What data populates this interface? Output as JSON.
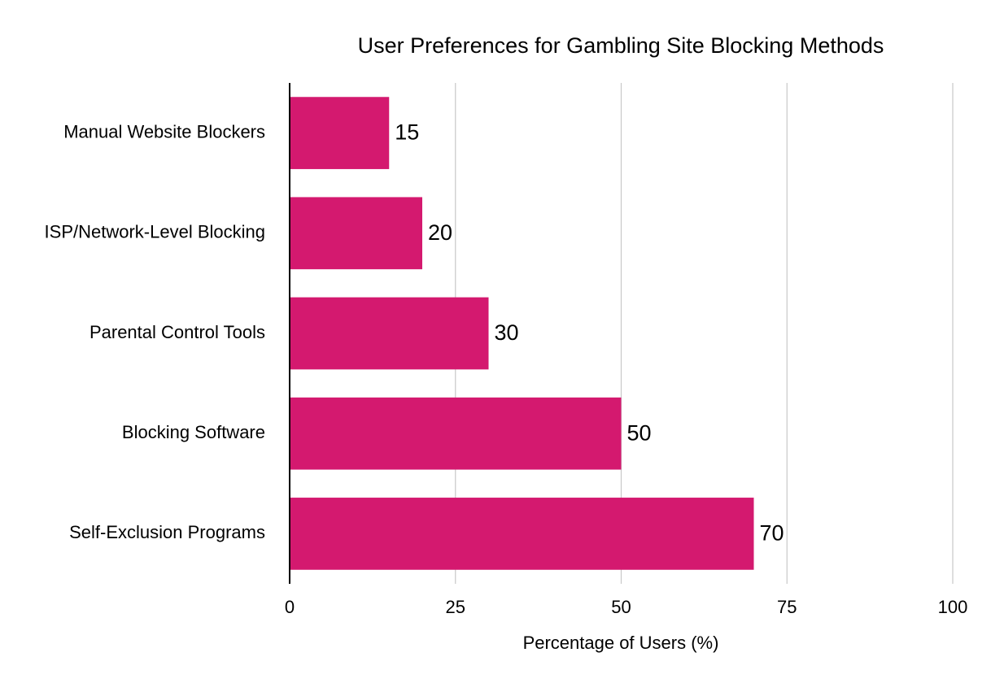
{
  "chart_data": {
    "type": "bar",
    "orientation": "horizontal",
    "title": "User Preferences for Gambling Site Blocking Methods",
    "x_label": "Percentage of Users (%)",
    "categories": [
      "Manual Website Blockers",
      "ISP/Network-Level Blocking",
      "Parental Control Tools",
      "Blocking Software",
      "Self-Exclusion Programs"
    ],
    "values": [
      15,
      20,
      30,
      50,
      70
    ],
    "color": "#d4196f",
    "xlim": [
      0,
      100
    ],
    "xticks": [
      0,
      25,
      50,
      75,
      100
    ],
    "grid": true
  }
}
